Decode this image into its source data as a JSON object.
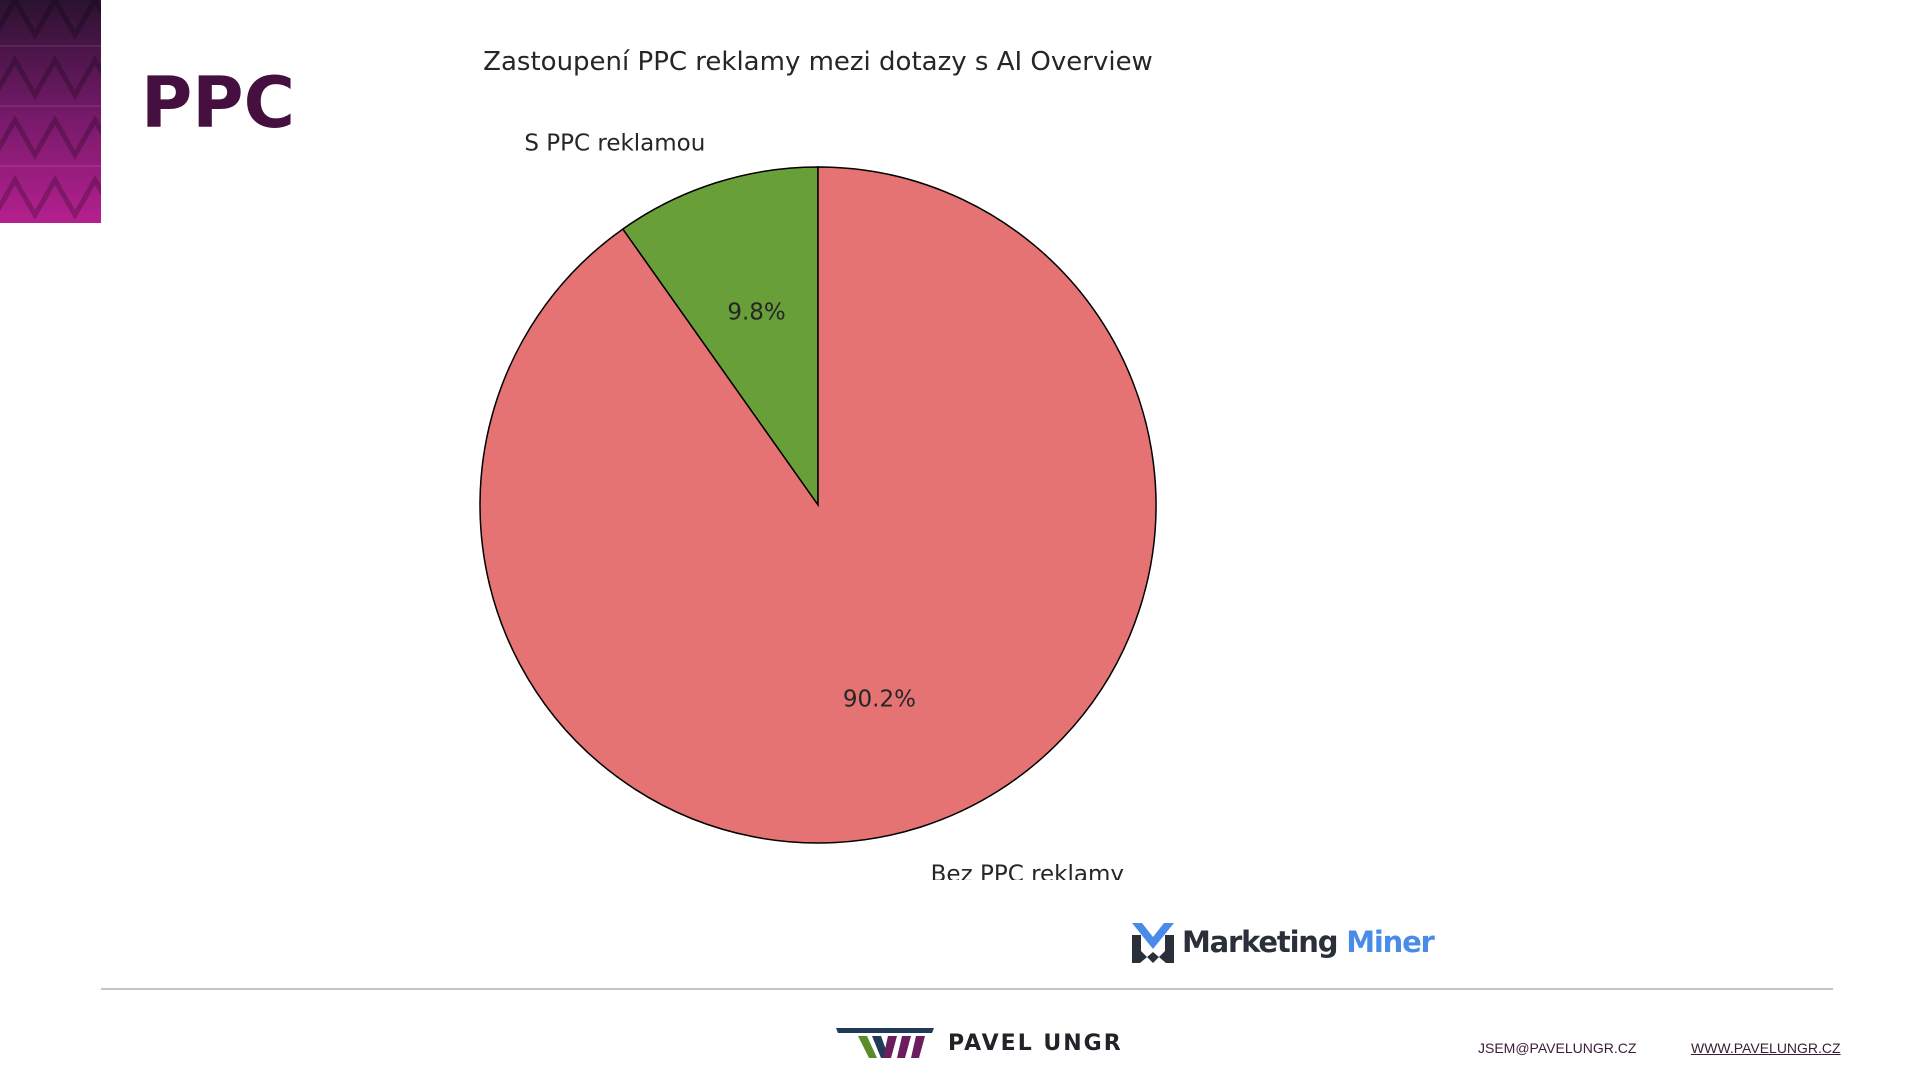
{
  "page": {
    "title": "PPC"
  },
  "chart_data": {
    "type": "pie",
    "title": "Zastoupení PPC reklamy mezi dotazy s AI Overview",
    "slices": [
      {
        "label": "S PPC reklamou",
        "value": 9.8,
        "pct_label": "9.8%",
        "color": "#689f38"
      },
      {
        "label": "Bez PPC reklamy",
        "value": 90.2,
        "pct_label": "90.2%",
        "color": "#e57373"
      }
    ],
    "start_angle_deg": 90,
    "direction": "counterclockwise",
    "edge_color": "#000000",
    "legend": "none"
  },
  "logos": {
    "marketing_miner": {
      "word1": "Marketing",
      "word2": "Miner",
      "colors": {
        "text": "#2a2f3a",
        "accent": "#4a8bea"
      }
    },
    "brand": {
      "name": "PAVEL UNGR",
      "colors": {
        "navy": "#1f3b57",
        "green": "#5b8c2a",
        "purple": "#6b1d5e"
      }
    }
  },
  "footer": {
    "email": "JSEM@PAVELUNGR.CZ",
    "website": "WWW.PAVELUNGR.CZ"
  },
  "theme": {
    "title_color": "#45103f",
    "corner_pattern_colors": [
      "#2a1230",
      "#7a1a6c",
      "#b5208f"
    ]
  }
}
